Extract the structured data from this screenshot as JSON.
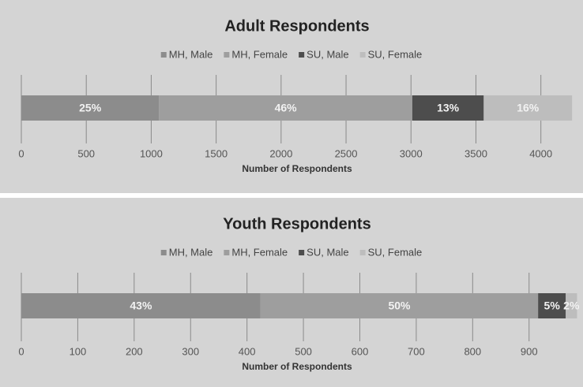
{
  "chart_data": [
    {
      "type": "stacked-barh",
      "title": "Adult Respondents",
      "xlabel": "Number of Respondents",
      "categories": [
        null
      ],
      "series": [
        {
          "name": "MH, Male",
          "color": "#8c8c8c",
          "values": [
            1060
          ],
          "value_labels": [
            "25%"
          ]
        },
        {
          "name": "MH, Female",
          "color": "#9e9e9e",
          "values": [
            1950
          ],
          "value_labels": [
            "46%"
          ]
        },
        {
          "name": "SU, Male",
          "color": "#4d4d4d",
          "values": [
            550
          ],
          "value_labels": [
            "13%"
          ]
        },
        {
          "name": "SU, Female",
          "color": "#bdbdbd",
          "values": [
            680
          ],
          "value_labels": [
            "16%"
          ]
        }
      ],
      "xlim": [
        0,
        4300
      ],
      "xticks": [
        0,
        500,
        1000,
        1500,
        2000,
        2500,
        3000,
        3500,
        4000
      ],
      "grid": true,
      "legend": "top"
    },
    {
      "type": "stacked-barh",
      "title": "Youth Respondents",
      "xlabel": "Number of Respondents",
      "categories": [
        null
      ],
      "series": [
        {
          "name": "MH, Male",
          "color": "#8c8c8c",
          "values": [
            424
          ],
          "value_labels": [
            "43%"
          ]
        },
        {
          "name": "MH, Female",
          "color": "#9e9e9e",
          "values": [
            492
          ],
          "value_labels": [
            "50%"
          ]
        },
        {
          "name": "SU, Male",
          "color": "#4d4d4d",
          "values": [
            49
          ],
          "value_labels": [
            "5%"
          ]
        },
        {
          "name": "SU, Female",
          "color": "#bdbdbd",
          "values": [
            20
          ],
          "value_labels": [
            "2%"
          ]
        }
      ],
      "xlim": [
        0,
        990
      ],
      "xticks": [
        0,
        100,
        200,
        300,
        400,
        500,
        600,
        700,
        800,
        900
      ],
      "grid": true,
      "legend": "top"
    }
  ]
}
